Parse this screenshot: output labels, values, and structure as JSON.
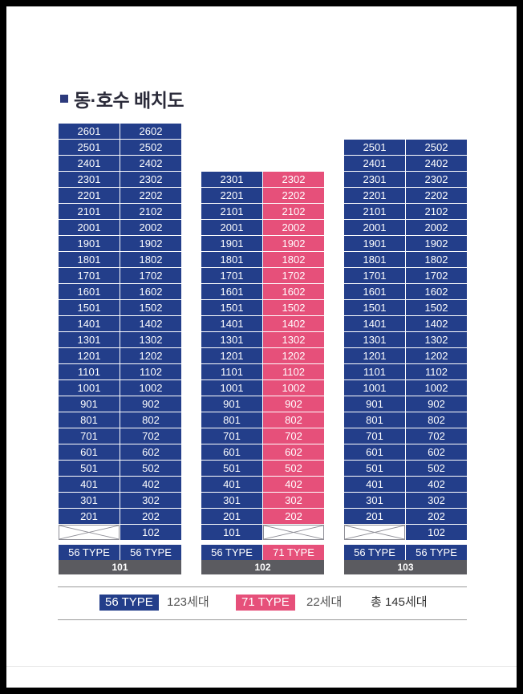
{
  "title": "동·호수 배치도",
  "colors": {
    "type56": "#233e8a",
    "type71": "#e6507a",
    "label": "#5b5b60"
  },
  "buildings": [
    {
      "name": "101",
      "types": [
        "56 TYPE",
        "56 TYPE"
      ],
      "type_colors": [
        "blue",
        "blue"
      ],
      "rows": [
        [
          "2601",
          "2602"
        ],
        [
          "2501",
          "2502"
        ],
        [
          "2401",
          "2402"
        ],
        [
          "2301",
          "2302"
        ],
        [
          "2201",
          "2202"
        ],
        [
          "2101",
          "2102"
        ],
        [
          "2001",
          "2002"
        ],
        [
          "1901",
          "1902"
        ],
        [
          "1801",
          "1802"
        ],
        [
          "1701",
          "1702"
        ],
        [
          "1601",
          "1602"
        ],
        [
          "1501",
          "1502"
        ],
        [
          "1401",
          "1402"
        ],
        [
          "1301",
          "1302"
        ],
        [
          "1201",
          "1202"
        ],
        [
          "1101",
          "1102"
        ],
        [
          "1001",
          "1002"
        ],
        [
          "901",
          "902"
        ],
        [
          "801",
          "802"
        ],
        [
          "701",
          "702"
        ],
        [
          "601",
          "602"
        ],
        [
          "501",
          "502"
        ],
        [
          "401",
          "402"
        ],
        [
          "301",
          "302"
        ],
        [
          "201",
          "202"
        ],
        [
          "",
          "102"
        ]
      ]
    },
    {
      "name": "102",
      "types": [
        "56 TYPE",
        "71 TYPE"
      ],
      "type_colors": [
        "blue",
        "pink"
      ],
      "rows": [
        [
          "2301",
          "2302"
        ],
        [
          "2201",
          "2202"
        ],
        [
          "2101",
          "2102"
        ],
        [
          "2001",
          "2002"
        ],
        [
          "1901",
          "1902"
        ],
        [
          "1801",
          "1802"
        ],
        [
          "1701",
          "1702"
        ],
        [
          "1601",
          "1602"
        ],
        [
          "1501",
          "1502"
        ],
        [
          "1401",
          "1402"
        ],
        [
          "1301",
          "1302"
        ],
        [
          "1201",
          "1202"
        ],
        [
          "1101",
          "1102"
        ],
        [
          "1001",
          "1002"
        ],
        [
          "901",
          "902"
        ],
        [
          "801",
          "802"
        ],
        [
          "701",
          "702"
        ],
        [
          "601",
          "602"
        ],
        [
          "501",
          "502"
        ],
        [
          "401",
          "402"
        ],
        [
          "301",
          "302"
        ],
        [
          "201",
          "202"
        ],
        [
          "101",
          ""
        ]
      ]
    },
    {
      "name": "103",
      "types": [
        "56 TYPE",
        "56 TYPE"
      ],
      "type_colors": [
        "blue",
        "blue"
      ],
      "rows": [
        [
          "2501",
          "2502"
        ],
        [
          "2401",
          "2402"
        ],
        [
          "2301",
          "2302"
        ],
        [
          "2201",
          "2202"
        ],
        [
          "2101",
          "2102"
        ],
        [
          "2001",
          "2002"
        ],
        [
          "1901",
          "1902"
        ],
        [
          "1801",
          "1802"
        ],
        [
          "1701",
          "1702"
        ],
        [
          "1601",
          "1602"
        ],
        [
          "1501",
          "1502"
        ],
        [
          "1401",
          "1402"
        ],
        [
          "1301",
          "1302"
        ],
        [
          "1201",
          "1202"
        ],
        [
          "1101",
          "1102"
        ],
        [
          "1001",
          "1002"
        ],
        [
          "901",
          "902"
        ],
        [
          "801",
          "802"
        ],
        [
          "701",
          "702"
        ],
        [
          "601",
          "602"
        ],
        [
          "501",
          "502"
        ],
        [
          "401",
          "402"
        ],
        [
          "301",
          "302"
        ],
        [
          "201",
          "202"
        ],
        [
          "",
          "102"
        ]
      ]
    }
  ],
  "legend": {
    "type56_label": "56 TYPE",
    "type56_count": "123세대",
    "type71_label": "71 TYPE",
    "type71_count": "22세대",
    "total": "총 145세대"
  }
}
